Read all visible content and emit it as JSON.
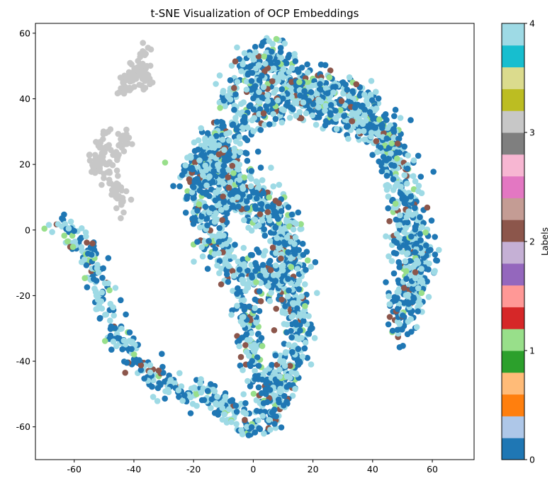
{
  "chart_data": {
    "type": "scatter",
    "title": "t-SNE Visualization of OCP Embeddings",
    "xlabel": "",
    "ylabel": "",
    "xlim": [
      -73,
      74
    ],
    "ylim": [
      -70,
      63
    ],
    "xticks": [
      -60,
      -40,
      -20,
      0,
      20,
      40,
      60
    ],
    "yticks": [
      -60,
      -40,
      -20,
      0,
      20,
      40,
      60
    ],
    "grid": false,
    "colorbar": {
      "label": "Labels",
      "range": [
        0,
        4
      ],
      "ticks": [
        0,
        1,
        2,
        3,
        4
      ],
      "colormap": "tab20",
      "colors": [
        "#1f77b4",
        "#aec7e8",
        "#ff7f0e",
        "#ffbb78",
        "#2ca02c",
        "#98df8a",
        "#d62728",
        "#ff9896",
        "#9467bd",
        "#c5b0d5",
        "#8c564b",
        "#c49c94",
        "#e377c2",
        "#f7b6d2",
        "#7f7f7f",
        "#c7c7c7",
        "#bcbd22",
        "#dbdb8d",
        "#17becf",
        "#9edae5"
      ]
    },
    "label_colors": {
      "0": "#1f77b4",
      "1": "#98df8a",
      "2": "#8c564b",
      "3": "#c7c7c7",
      "4": "#9edae5"
    },
    "clusters": [
      {
        "label": 3,
        "description_points": [
          [
            -42,
            46
          ],
          [
            -40,
            48
          ],
          [
            -38,
            50
          ],
          [
            -36,
            47
          ],
          [
            -38,
            44
          ],
          [
            -41,
            43
          ],
          [
            -44,
            42
          ],
          [
            -37,
            53
          ],
          [
            -36,
            55
          ],
          [
            -39,
            49
          ],
          [
            -35,
            45
          ],
          [
            -40,
            46
          ],
          [
            -43,
            45
          ],
          [
            -38,
            47
          ],
          [
            -36,
            50
          ]
        ]
      },
      {
        "label": 3,
        "description_points": [
          [
            -54,
            22
          ],
          [
            -52,
            26
          ],
          [
            -50,
            29
          ],
          [
            -48,
            25
          ],
          [
            -50,
            20
          ],
          [
            -52,
            18
          ],
          [
            -49,
            16
          ],
          [
            -47,
            22
          ],
          [
            -45,
            28
          ],
          [
            -44,
            26
          ],
          [
            -51,
            23
          ],
          [
            -53,
            20
          ],
          [
            -48,
            19
          ],
          [
            -46,
            12
          ],
          [
            -45,
            9
          ],
          [
            -44,
            6
          ],
          [
            -43,
            11
          ],
          [
            -47,
            14
          ],
          [
            -42,
            28
          ],
          [
            -50,
            24
          ]
        ]
      }
    ],
    "point_summary": "Thousands of points forming an S-shaped band; label 0 (dark blue) and label 4 (light blue) dominate, with scattered label 1 (light green) and label 2 (brown) points; two separate clusters of label 3 (gray) at upper left."
  }
}
